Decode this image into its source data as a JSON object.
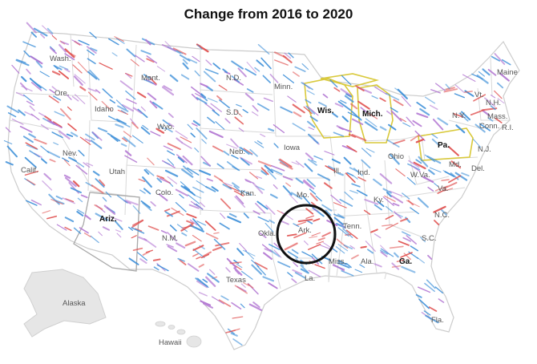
{
  "title": "Change from 2016 to 2020",
  "colors": {
    "shift_democratic": "#3b8ed8",
    "shift_republican": "#e0504f",
    "mixed": "#b276d2",
    "state_fill": "#ffffff",
    "state_border": "#d6d6d6",
    "outside_fill": "#e6e6e6",
    "highlight_arizona": "#aaaaaa",
    "highlight_midwest": "#d9c93a",
    "circle": "#111111"
  },
  "states": {
    "wash": "Wash.",
    "ore": "Ore.",
    "idaho": "Idaho",
    "mont": "Mont.",
    "wyo": "Wyo.",
    "nev": "Nev.",
    "calif": "Calif.",
    "utah": "Utah",
    "colo": "Colo.",
    "ariz": "Ariz.",
    "nm": "N.M.",
    "nd": "N.D.",
    "sd": "S.D.",
    "neb": "Neb.",
    "kan": "Kan.",
    "okla": "Okla.",
    "texas": "Texas",
    "minn": "Minn.",
    "iowa": "Iowa",
    "mo": "Mo.",
    "ark": "Ark.",
    "la": "La.",
    "wis": "Wis.",
    "mich": "Mich.",
    "ill": "Ill.",
    "ind": "Ind.",
    "ohio": "Ohio",
    "ky": "Ky.",
    "tenn": "Tenn.",
    "miss": "Miss.",
    "ala": "Ala.",
    "ga": "Ga.",
    "fla": "Fla.",
    "sc": "S.C.",
    "nc": "N.C.",
    "va": "Va.",
    "wva": "W.Va.",
    "pa": "Pa.",
    "ny": "N.Y.",
    "nj": "N.J.",
    "md": "Md.",
    "del": "Del.",
    "conn": "Conn.",
    "ri": "R.I.",
    "mass": "Mass.",
    "vt": "Vt.",
    "nh": "N.H.",
    "maine": "Maine",
    "alaska": "Alaska",
    "hawaii": "Hawaii"
  }
}
